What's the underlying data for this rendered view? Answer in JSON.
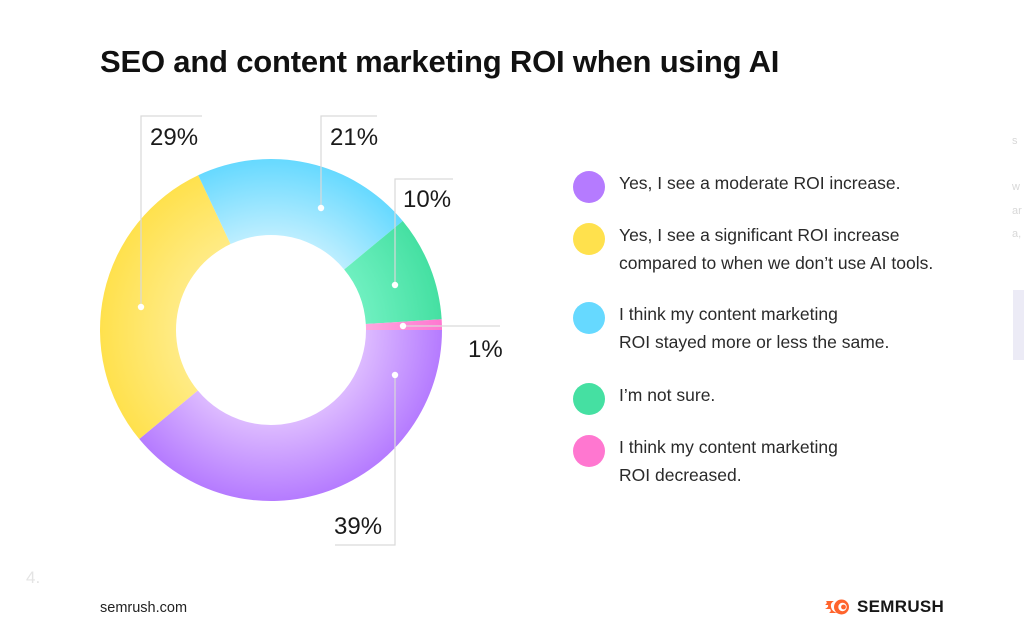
{
  "title": "SEO and content marketing ROI when using AI",
  "chart_data": {
    "type": "pie",
    "subtype": "donut",
    "title": "SEO and content marketing ROI when using AI",
    "categories": [
      "Yes, I see a moderate ROI increase.",
      "Yes, I see a significant ROI increase compared to when we don’t use AI tools.",
      "I think my content marketing ROI stayed more or less the same.",
      "I’m not sure.",
      "I think my content marketing ROI decreased."
    ],
    "values": [
      39,
      29,
      21,
      10,
      1
    ],
    "labels": [
      "39%",
      "29%",
      "21%",
      "10%",
      "1%"
    ],
    "colors": [
      "#B57BFF",
      "#FFE14D",
      "#66D9FF",
      "#45E0A2",
      "#FF77D0"
    ],
    "legend_position": "right",
    "start_angle_deg": 0,
    "direction": "clockwise"
  },
  "legend": [
    {
      "lines": [
        "Yes, I see a moderate ROI increase."
      ],
      "color": "#B57BFF"
    },
    {
      "lines": [
        "Yes, I see a significant ROI increase",
        "compared to when we don’t use AI tools."
      ],
      "color": "#FFE14D"
    },
    {
      "lines": [
        "I think my content marketing",
        "ROI stayed more or less the same."
      ],
      "color": "#66D9FF"
    },
    {
      "lines": [
        "I’m not sure."
      ],
      "color": "#45E0A2"
    },
    {
      "lines": [
        "I think my content marketing",
        "ROI decreased."
      ],
      "color": "#FF77D0"
    }
  ],
  "labels": {
    "purple": "39%",
    "yellow": "29%",
    "blue": "21%",
    "green": "10%",
    "pink": "1%"
  },
  "footer": {
    "site": "semrush.com",
    "page_number": "4.",
    "brand": "SEMRUSH",
    "brand_color": "#FF642D"
  },
  "ghost_text": [
    "s",
    "w",
    "ar",
    "a,"
  ]
}
